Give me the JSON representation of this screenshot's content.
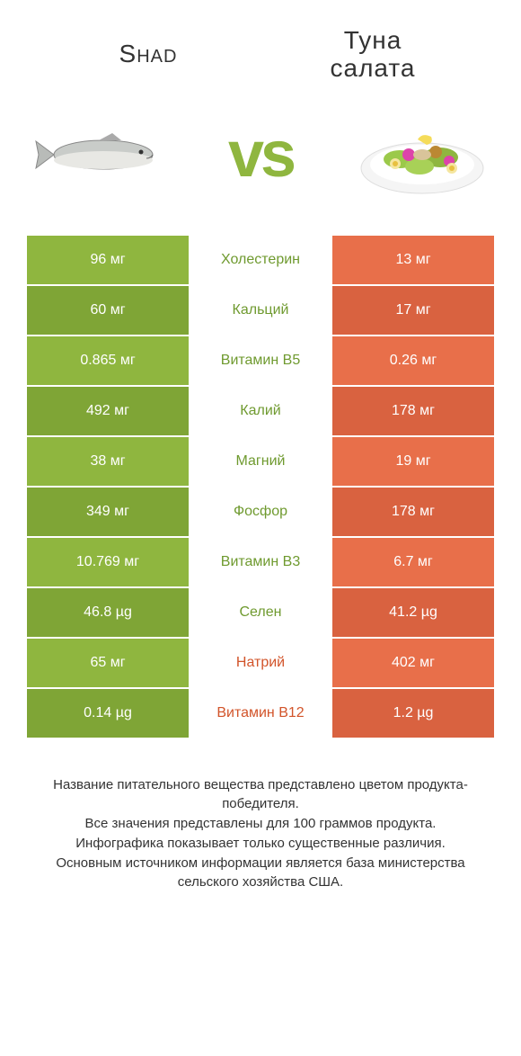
{
  "colors": {
    "green": "#8fb63f",
    "green_dark": "#7fa536",
    "orange": "#e86f4a",
    "orange_dark": "#d96240",
    "text_green": "#6f9a2f",
    "text_orange": "#d2542a"
  },
  "header": {
    "left_title": "Shad",
    "right_title_line1": "Туна",
    "right_title_line2": "салата",
    "vs": "vs"
  },
  "rows": [
    {
      "nutrient": "Холестерин",
      "left": "96 мг",
      "right": "13 мг",
      "winner": "left"
    },
    {
      "nutrient": "Кальций",
      "left": "60 мг",
      "right": "17 мг",
      "winner": "left"
    },
    {
      "nutrient": "Витамин B5",
      "left": "0.865 мг",
      "right": "0.26 мг",
      "winner": "left"
    },
    {
      "nutrient": "Калий",
      "left": "492 мг",
      "right": "178 мг",
      "winner": "left"
    },
    {
      "nutrient": "Магний",
      "left": "38 мг",
      "right": "19 мг",
      "winner": "left"
    },
    {
      "nutrient": "Фосфор",
      "left": "349 мг",
      "right": "178 мг",
      "winner": "left"
    },
    {
      "nutrient": "Витамин B3",
      "left": "10.769 мг",
      "right": "6.7 мг",
      "winner": "left"
    },
    {
      "nutrient": "Селен",
      "left": "46.8 µg",
      "right": "41.2 µg",
      "winner": "left"
    },
    {
      "nutrient": "Натрий",
      "left": "65 мг",
      "right": "402 мг",
      "winner": "right"
    },
    {
      "nutrient": "Витамин B12",
      "left": "0.14 µg",
      "right": "1.2 µg",
      "winner": "right"
    }
  ],
  "footer": {
    "line1": "Название питательного вещества представлено цветом продукта-победителя.",
    "line2": "Все значения представлены для 100 граммов продукта.",
    "line3": "Инфографика показывает только существенные различия.",
    "line4": "Основным источником информации является база министерства сельского хозяйства США."
  }
}
